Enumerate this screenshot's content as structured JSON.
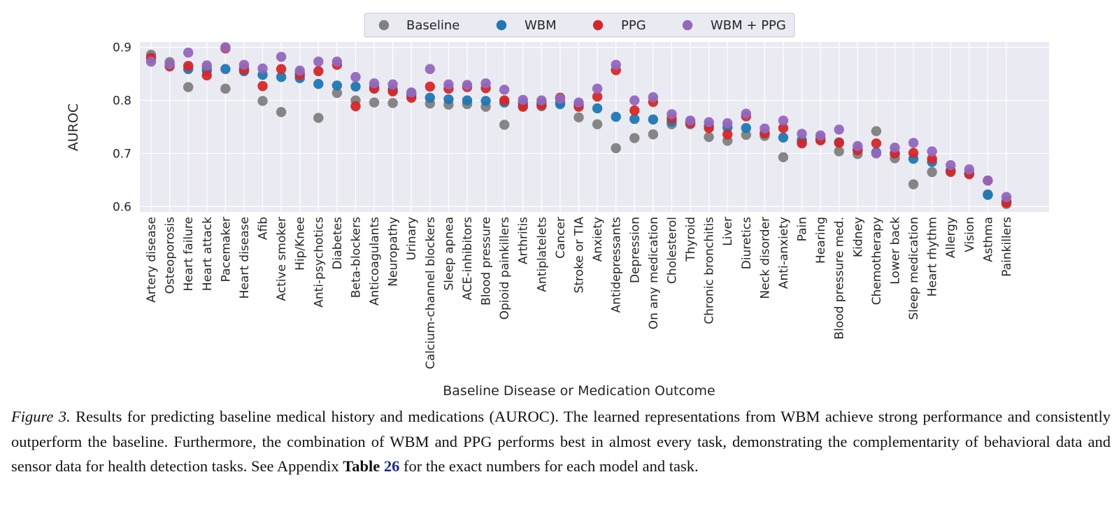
{
  "chart_data": {
    "type": "scatter",
    "ylabel": "AUROC",
    "xlabel": "Baseline Disease or Medication Outcome",
    "ylim": [
      0.59,
      0.91
    ],
    "yticks": [
      0.6,
      0.7,
      0.8,
      0.9
    ],
    "grid": true,
    "legend_position": "top-center",
    "categories": [
      "Artery disease",
      "Osteoporosis",
      "Heart failure",
      "Heart attack",
      "Pacemaker",
      "Heart disease",
      "Afib",
      "Active smoker",
      "Hip/Knee",
      "Anti-psychotics",
      "Diabetes",
      "Beta-blockers",
      "Anticoagulants",
      "Neuropathy",
      "Urinary",
      "Calcium-channel blockers",
      "Sleep apnea",
      "ACE-inhibitors",
      "Blood pressure",
      "Opioid painkillers",
      "Arthritis",
      "Antiplatelets",
      "Cancer",
      "Stroke or TIA",
      "Anxiety",
      "Antidepressants",
      "Depression",
      "On any medication",
      "Cholesterol",
      "Thyroid",
      "Chronic bronchitis",
      "Liver",
      "Diuretics",
      "Neck disorder",
      "Anti-anxiety",
      "Pain",
      "Hearing",
      "Blood pressure med.",
      "Kidney",
      "Chemotherapy",
      "Lower back",
      "Sleep medication",
      "Heart rhythm",
      "Allergy",
      "Vision",
      "Asthma",
      "Painkillers"
    ],
    "series": [
      {
        "name": "Baseline",
        "color": "#808080",
        "values": [
          0.886,
          0.872,
          0.825,
          0.862,
          0.822,
          0.862,
          0.799,
          0.778,
          0.852,
          0.767,
          0.814,
          0.8,
          0.796,
          0.795,
          0.811,
          0.794,
          0.792,
          0.793,
          0.788,
          0.754,
          0.79,
          0.789,
          0.797,
          0.768,
          0.755,
          0.71,
          0.729,
          0.736,
          0.755,
          0.755,
          0.731,
          0.724,
          0.735,
          0.733,
          0.693,
          0.722,
          0.725,
          0.704,
          0.699,
          0.742,
          0.691,
          0.642,
          0.665,
          0.665,
          0.663,
          0.623,
          0.605
        ]
      },
      {
        "name": "WBM",
        "color": "#1f77b4",
        "values": [
          0.88,
          0.867,
          0.859,
          0.856,
          0.859,
          0.855,
          0.848,
          0.844,
          0.842,
          0.831,
          0.828,
          0.826,
          0.825,
          0.82,
          0.812,
          0.805,
          0.802,
          0.8,
          0.799,
          0.796,
          0.795,
          0.795,
          0.793,
          0.792,
          0.785,
          0.769,
          0.765,
          0.764,
          0.76,
          0.759,
          0.752,
          0.749,
          0.748,
          0.738,
          0.73,
          0.725,
          0.728,
          0.721,
          0.708,
          0.702,
          0.7,
          0.69,
          0.684,
          0.668,
          0.663,
          0.622,
          0.61
        ]
      },
      {
        "name": "PPG",
        "color": "#d62728",
        "values": [
          0.88,
          0.864,
          0.865,
          0.847,
          0.898,
          0.858,
          0.827,
          0.859,
          0.848,
          0.855,
          0.867,
          0.789,
          0.822,
          0.817,
          0.805,
          0.826,
          0.822,
          0.825,
          0.823,
          0.8,
          0.788,
          0.791,
          0.805,
          0.788,
          0.807,
          0.857,
          0.781,
          0.797,
          0.766,
          0.757,
          0.748,
          0.736,
          0.77,
          0.738,
          0.748,
          0.719,
          0.725,
          0.72,
          0.706,
          0.719,
          0.7,
          0.701,
          0.69,
          0.666,
          0.661,
          0.649,
          0.607
        ]
      },
      {
        "name": "WBM + PPG",
        "color": "#9467bd",
        "values": [
          0.873,
          0.868,
          0.89,
          0.866,
          0.9,
          0.867,
          0.86,
          0.882,
          0.856,
          0.873,
          0.873,
          0.844,
          0.832,
          0.83,
          0.815,
          0.859,
          0.83,
          0.829,
          0.832,
          0.82,
          0.801,
          0.8,
          0.803,
          0.796,
          0.822,
          0.867,
          0.8,
          0.806,
          0.774,
          0.762,
          0.759,
          0.757,
          0.775,
          0.747,
          0.762,
          0.737,
          0.734,
          0.745,
          0.714,
          0.7,
          0.711,
          0.72,
          0.704,
          0.678,
          0.67,
          0.649,
          0.618
        ]
      }
    ]
  },
  "caption": {
    "label": "Figure 3.",
    "text_before_ref": " Results for predicting baseline medical history and medications (AUROC). The learned representations from WBM achieve strong performance and consistently outperform the baseline. Furthermore, the combination of WBM and PPG performs best in almost every task, demonstrating the complementarity of behavioral data and sensor data for health detection tasks. See Appendix ",
    "ref_word": "Table",
    "ref_number": "26",
    "text_after_ref": " for the exact numbers for each model and task."
  }
}
